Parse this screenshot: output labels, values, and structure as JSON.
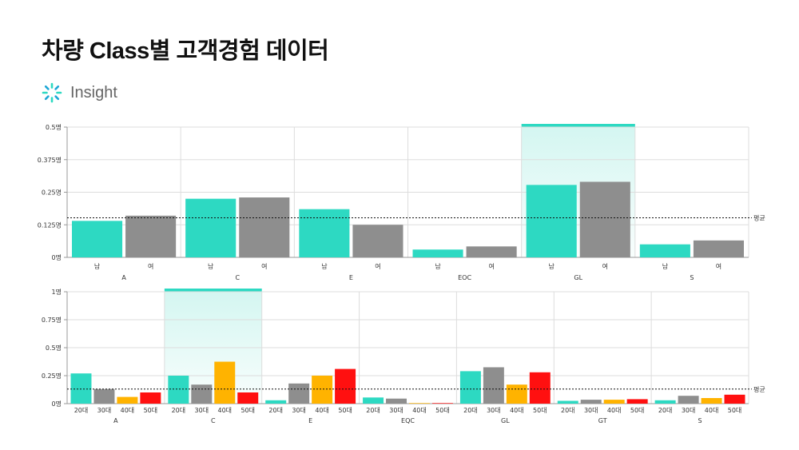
{
  "page": {
    "title": "차량 Class별 고객경험 데이터"
  },
  "insight": {
    "label": "Insight",
    "icon": "loading-spinner-icon"
  },
  "colors": {
    "teal": "#2DD9C2",
    "gray": "#8E8E8E",
    "orange": "#FFB300",
    "red": "#FF1010",
    "highlight_bar": "#2DD9C2",
    "highlight_fill": "#D4F6F1"
  },
  "chart_data": [
    {
      "type": "bar",
      "title": "",
      "groups": [
        "A",
        "C",
        "E",
        "EQC",
        "GL",
        "S"
      ],
      "subcategories": [
        "남",
        "여"
      ],
      "series": [
        {
          "values": [
            0.14,
            0.16,
            0.225,
            0.23,
            0.185,
            0.125,
            0.03,
            0.042,
            0.278,
            0.29,
            0.05,
            0.065
          ]
        }
      ],
      "bar_colors": [
        "teal",
        "gray"
      ],
      "ylim": [
        0,
        0.5
      ],
      "yticks": [
        0,
        0.125,
        0.25,
        0.375,
        0.5
      ],
      "ytick_labels": [
        "0명",
        "0.125명",
        "0.25명",
        "0.375명",
        "0.5명"
      ],
      "average": 0.152,
      "average_label": "평균",
      "highlight_group": "GL",
      "grid": true
    },
    {
      "type": "bar",
      "title": "",
      "groups": [
        "A",
        "C",
        "E",
        "EQC",
        "GL",
        "GT",
        "S"
      ],
      "subcategories": [
        "20대",
        "30대",
        "40대",
        "50대"
      ],
      "series": [
        {
          "values": [
            0.27,
            0.13,
            0.06,
            0.1,
            0.25,
            0.17,
            0.375,
            0.1,
            0.03,
            0.18,
            0.25,
            0.31,
            0.055,
            0.045,
            0.005,
            0.005,
            0.29,
            0.325,
            0.17,
            0.28,
            0.025,
            0.035,
            0.035,
            0.04,
            0.03,
            0.07,
            0.05,
            0.08
          ]
        }
      ],
      "bar_colors": [
        "teal",
        "gray",
        "orange",
        "red"
      ],
      "ylim": [
        0,
        1
      ],
      "yticks": [
        0,
        0.25,
        0.5,
        0.75,
        1
      ],
      "ytick_labels": [
        "0명",
        "0.25명",
        "0.5명",
        "0.75명",
        "1명"
      ],
      "average": 0.13,
      "average_label": "평균",
      "highlight_group": "C",
      "grid": true
    }
  ]
}
